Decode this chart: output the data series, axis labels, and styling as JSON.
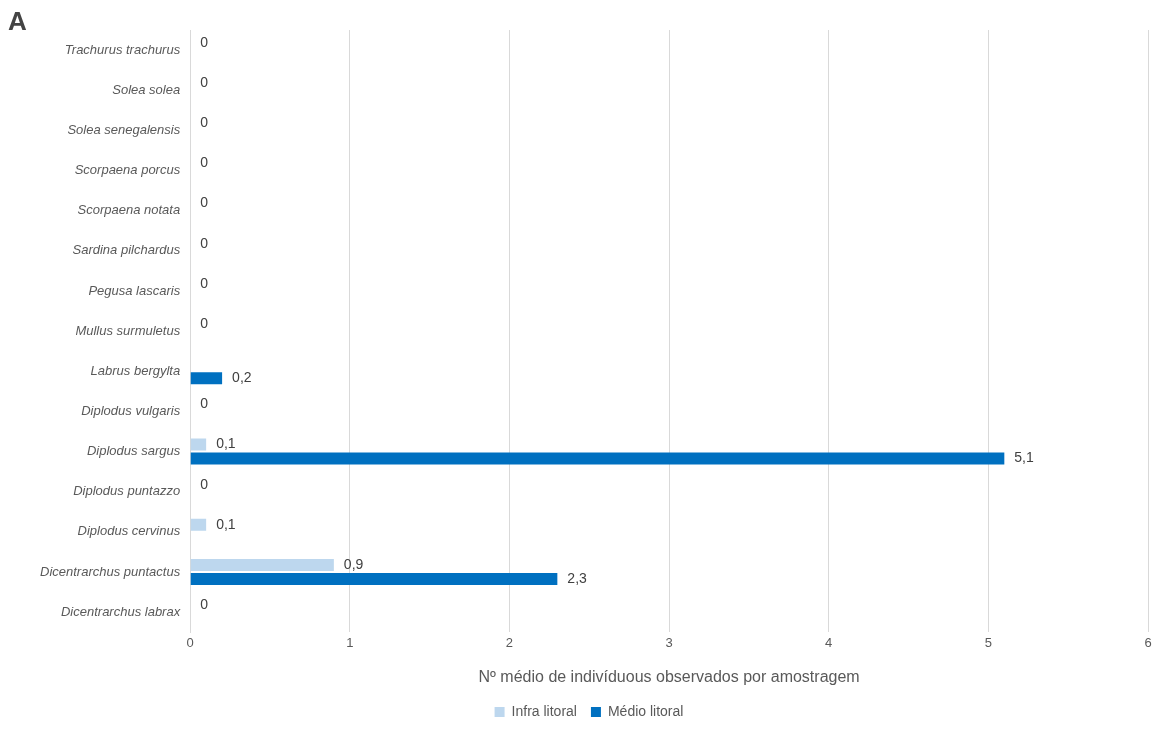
{
  "chart_data": {
    "type": "bar",
    "orientation": "horizontal",
    "xlabel": "Nº médio de indivíduous observados por amostragem",
    "annotations": [
      "A"
    ],
    "categories": [
      "Trachurus trachurus",
      "Solea solea",
      "Solea senegalensis",
      "Scorpaena porcus",
      "Scorpaena notata",
      "Sardina pilchardus",
      "Pegusa lascaris",
      "Mullus surmuletus",
      "Labrus bergylta",
      "Diplodus vulgaris",
      "Diplodus sargus",
      "Diplodus puntazzo",
      "Diplodus cervinus",
      "Dicentrarchus puntactus",
      "Dicentrarchus labrax"
    ],
    "series": [
      {
        "name": "Infra litoral",
        "color": "#bdd7ee",
        "values": [
          0,
          0,
          0,
          0,
          0,
          0,
          0,
          0,
          0,
          0,
          0.1,
          0,
          0.1,
          0.9,
          0
        ],
        "value_labels": [
          "0",
          "0",
          "0",
          "0",
          "0",
          "0",
          "0",
          "0",
          null,
          "0",
          "0,1",
          "0",
          "0,1",
          "0,9",
          "0"
        ]
      },
      {
        "name": "Médio litoral",
        "color": "#0070c0",
        "values": [
          0,
          0,
          0,
          0,
          0,
          0,
          0,
          0,
          0.2,
          0,
          5.1,
          0,
          0,
          2.3,
          0
        ],
        "value_labels": [
          null,
          null,
          null,
          null,
          null,
          null,
          null,
          null,
          "0,2",
          null,
          "5,1",
          null,
          null,
          "2,3",
          null
        ]
      }
    ],
    "xlim": [
      0,
      6
    ],
    "xticks": [
      0,
      1,
      2,
      3,
      4,
      5,
      6
    ],
    "grid": "x",
    "legend": "bottom"
  }
}
